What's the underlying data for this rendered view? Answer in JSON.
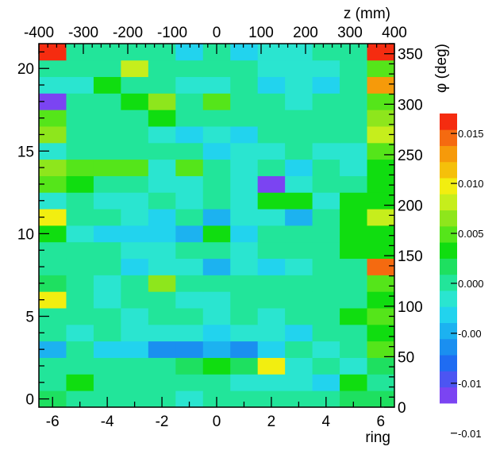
{
  "chart_data": {
    "type": "heatmap",
    "title": "",
    "x": {
      "label": "ring",
      "range": [
        -6.5,
        6.5
      ],
      "tick_values": [
        -6,
        -4,
        -2,
        0,
        2,
        4,
        6
      ],
      "tick_labels": [
        "-6",
        "-4",
        "-2",
        "0",
        "2",
        "4",
        "6"
      ]
    },
    "y": {
      "label": "",
      "range": [
        -0.5,
        21.5
      ],
      "tick_values": [
        0,
        5,
        10,
        15,
        20
      ],
      "tick_labels": [
        "0",
        "5",
        "10",
        "15",
        "20"
      ]
    },
    "x2": {
      "label": "z (mm)",
      "range": [
        -400,
        400
      ],
      "tick_values": [
        -400,
        -300,
        -200,
        -100,
        0,
        100,
        200,
        300,
        400
      ],
      "tick_labels": [
        "-400",
        "-300",
        "-200",
        "-100",
        "0",
        "100",
        "200",
        "300",
        "400"
      ]
    },
    "y2": {
      "label": "φ (deg)",
      "range": [
        0,
        360
      ],
      "tick_values": [
        0,
        50,
        100,
        150,
        200,
        250,
        300,
        350
      ],
      "tick_labels": [
        "0",
        "50",
        "100",
        "150",
        "200",
        "250",
        "300",
        "350"
      ]
    },
    "colorbar": {
      "range": [
        -0.012,
        0.017
      ],
      "tick_values": [
        0.015,
        0.01,
        0.005,
        0.0,
        -0.005,
        -0.01,
        -0.015
      ],
      "tick_labels": [
        "0.015",
        "0.010",
        "0.005",
        "0.000",
        "-0.00",
        "-0.01",
        "-0.01"
      ],
      "palette": [
        "#7b44f2",
        "#4c55f2",
        "#1f6cf2",
        "#1a8ff0",
        "#1cb2f0",
        "#22d3ee",
        "#2ae5d0",
        "#22e59a",
        "#1ee060",
        "#10dd10",
        "#55e51a",
        "#8ee61c",
        "#c6ee1c",
        "#f2ee10",
        "#f5c00a",
        "#f69a0a",
        "#f56a10",
        "#f52c10"
      ]
    },
    "x_categories": [
      -6,
      -5,
      -4,
      -3,
      -2,
      -1,
      0,
      1,
      2,
      3,
      4,
      5,
      6
    ],
    "y_categories": [
      0,
      1,
      2,
      3,
      4,
      5,
      6,
      7,
      8,
      9,
      10,
      11,
      12,
      13,
      14,
      15,
      16,
      17,
      18,
      19,
      20,
      21
    ],
    "values": [
      [
        0.0015,
        0.0005,
        0.0004,
        0.0005,
        0.0002,
        -0.0008,
        -0.0006,
        0.0,
        0.0004,
        0.0005,
        0.0002,
        0.0015,
        0.001
      ],
      [
        0.0006,
        0.004,
        0.0002,
        0.0,
        0.0004,
        0.0003,
        0.0002,
        -0.0008,
        -0.0008,
        -0.0012,
        -0.003,
        0.0025,
        0.0005
      ],
      [
        0.0008,
        0.0006,
        0.0004,
        -0.0004,
        0.0003,
        0.0012,
        0.003,
        0.002,
        0.009,
        -0.001,
        0.0002,
        -0.001,
        0.0022
      ],
      [
        -0.004,
        0.0005,
        -0.003,
        -0.0035,
        -0.006,
        -0.007,
        -0.0045,
        -0.0065,
        -0.0025,
        0.0004,
        -0.0008,
        0.0002,
        0.0045
      ],
      [
        0.0005,
        -0.001,
        0.0003,
        -0.002,
        -0.001,
        -0.002,
        -0.003,
        -0.001,
        -0.001,
        -0.003,
        0.0004,
        0.0002,
        0.0035
      ],
      [
        0.0006,
        0.0003,
        0.0004,
        -0.001,
        0.0005,
        0.0002,
        -0.001,
        0.0004,
        -0.001,
        0.0003,
        0.0002,
        0.004,
        0.005
      ],
      [
        0.01,
        0.0005,
        -0.001,
        0.0004,
        0.0003,
        -0.001,
        -0.0008,
        -0.0005,
        0.0004,
        0.0003,
        0.0004,
        0.0004,
        0.0035
      ],
      [
        0.001,
        0.0002,
        -0.0008,
        0.0002,
        0.006,
        0.0004,
        0.0002,
        0.0004,
        0.0003,
        -0.0005,
        0.0002,
        0.0003,
        0.005
      ],
      [
        0.0005,
        0.0004,
        0.0003,
        -0.0025,
        -0.0015,
        -0.001,
        -0.004,
        -0.001,
        -0.003,
        -0.001,
        0.0005,
        0.0003,
        0.015
      ],
      [
        0.0005,
        0.0004,
        0.0,
        -0.0012,
        -0.001,
        0.0002,
        0.0004,
        -0.0012,
        0.0002,
        0.0004,
        0.0003,
        0.0035,
        0.0025
      ],
      [
        0.004,
        -0.001,
        -0.0025,
        -0.0025,
        -0.0025,
        -0.004,
        0.0035,
        -0.0025,
        0.0003,
        0.0002,
        0.0004,
        0.003,
        0.004
      ],
      [
        0.009,
        0.0004,
        0.0002,
        -0.001,
        -0.0025,
        0.0004,
        -0.005,
        -0.0012,
        -0.0012,
        -0.0045,
        0.0004,
        0.003,
        0.0085
      ],
      [
        -0.001,
        0.0004,
        -0.0012,
        -0.0012,
        0.0003,
        -0.002,
        0.0004,
        -0.001,
        0.004,
        0.003,
        -0.001,
        0.003,
        0.004
      ],
      [
        0.005,
        0.003,
        0.0003,
        0.0002,
        -0.0012,
        -0.002,
        0.0004,
        -0.002,
        -0.012,
        -0.001,
        0.0003,
        0.0002,
        0.004
      ],
      [
        0.006,
        0.0045,
        0.0045,
        0.0045,
        -0.001,
        0.0045,
        0.0003,
        -0.001,
        -0.0005,
        -0.003,
        0.0003,
        -0.001,
        0.003
      ],
      [
        -0.001,
        0.0004,
        0.0003,
        0.0002,
        0.0004,
        0.0003,
        -0.003,
        -0.001,
        -0.001,
        0.0003,
        -0.001,
        -0.001,
        0.005
      ],
      [
        0.006,
        0.0004,
        0.0003,
        0.0002,
        -0.001,
        -0.003,
        -0.001,
        -0.003,
        0.0003,
        0.0002,
        0.0004,
        0.0003,
        0.008
      ],
      [
        0.005,
        0.0004,
        0.0003,
        0.0002,
        0.004,
        0.0003,
        0.0002,
        0.0004,
        0.0002,
        0.0003,
        0.0002,
        0.0004,
        0.0065
      ],
      [
        -0.011,
        0.0004,
        0.0003,
        0.004,
        0.007,
        0.0002,
        0.0045,
        0.0004,
        0.0003,
        -0.001,
        0.0004,
        0.0003,
        0.005
      ],
      [
        -0.001,
        -0.001,
        0.004,
        0.0003,
        0.0004,
        -0.001,
        -0.0012,
        -0.0005,
        -0.003,
        -0.001,
        -0.003,
        0.0003,
        0.013
      ],
      [
        0.0004,
        0.0004,
        0.0003,
        0.008,
        0.0002,
        0.0004,
        0.0003,
        0.0002,
        -0.001,
        -0.001,
        -0.001,
        0.0003,
        0.005
      ],
      [
        0.016,
        0.0004,
        0.0003,
        0.0002,
        0.0004,
        -0.0025,
        0.0003,
        -0.003,
        -0.001,
        -0.001,
        0.0003,
        0.0004,
        0.016
      ]
    ]
  }
}
